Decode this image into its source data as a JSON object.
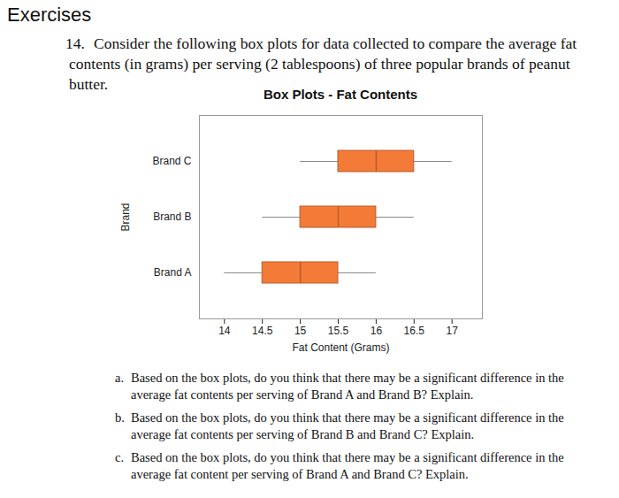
{
  "heading": "Exercises",
  "exercise": {
    "number": "14.",
    "text": "Consider the following box plots for data collected to compare the average fat contents (in grams) per serving (2 tablespoons) of three popular brands of peanut butter."
  },
  "chart_data": {
    "type": "box",
    "title": "Box Plots - Fat Contents",
    "orientation": "horizontal",
    "x_label": "Fat Content (Grams)",
    "y_label": "Brand",
    "categories": [
      "Brand C",
      "Brand B",
      "Brand A"
    ],
    "min": [
      15,
      14.5,
      14
    ],
    "q1": [
      15.5,
      15,
      14.5
    ],
    "median": [
      16,
      15.5,
      15
    ],
    "q3": [
      16.5,
      16,
      15.5
    ],
    "max": [
      17,
      16.5,
      16
    ],
    "color": "#f47a38",
    "xlim": [
      13.67,
      17.4
    ],
    "xticks": [
      14,
      14.5,
      15,
      15.5,
      16,
      16.5,
      17
    ],
    "grid": false
  },
  "questions": [
    {
      "label": "a.",
      "text": "Based on the box plots, do you think that there may be a significant difference in the average fat contents per serving of Brand A and Brand B? Explain."
    },
    {
      "label": "b.",
      "text": "Based on the box plots, do you think that there may be a significant difference in the average fat contents per serving of Brand B and Brand C? Explain."
    },
    {
      "label": "c.",
      "text": "Based on the box plots, do you think that there may be a significant difference in the average fat content per serving of Brand A and Brand C? Explain."
    }
  ]
}
